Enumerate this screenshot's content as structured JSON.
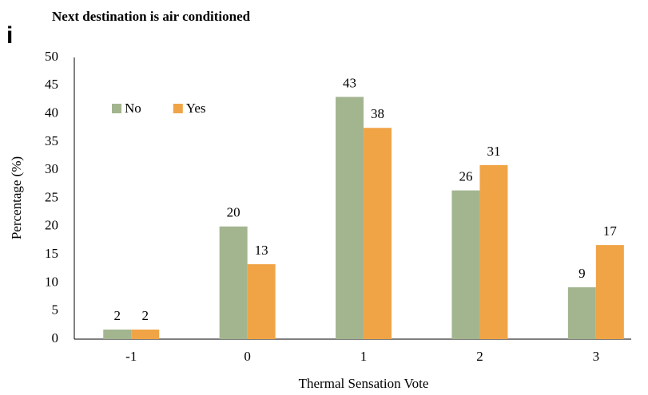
{
  "chart_data": {
    "type": "bar",
    "panel_label": "i",
    "title": "Next destination is air conditioned",
    "x_label": "Thermal Sensation Vote",
    "y_label": "Percentage (%)",
    "categories": [
      "-1",
      "0",
      "1",
      "2",
      "3"
    ],
    "series": [
      {
        "name": "No",
        "color": "#a3b58f",
        "values": [
          1.7,
          20,
          43,
          26.4,
          9.2
        ],
        "value_labels": [
          "2",
          "20",
          "43",
          "26",
          "9"
        ]
      },
      {
        "name": "Yes",
        "color": "#f0a446",
        "values": [
          1.7,
          13.3,
          37.5,
          30.9,
          16.7
        ],
        "value_labels": [
          "2",
          "13",
          "38",
          "31",
          "17"
        ]
      }
    ],
    "ylim": [
      0,
      50
    ],
    "yticks": [
      0,
      5,
      10,
      15,
      20,
      25,
      30,
      35,
      40,
      45,
      50
    ],
    "grid": false,
    "legend": "upper left"
  }
}
